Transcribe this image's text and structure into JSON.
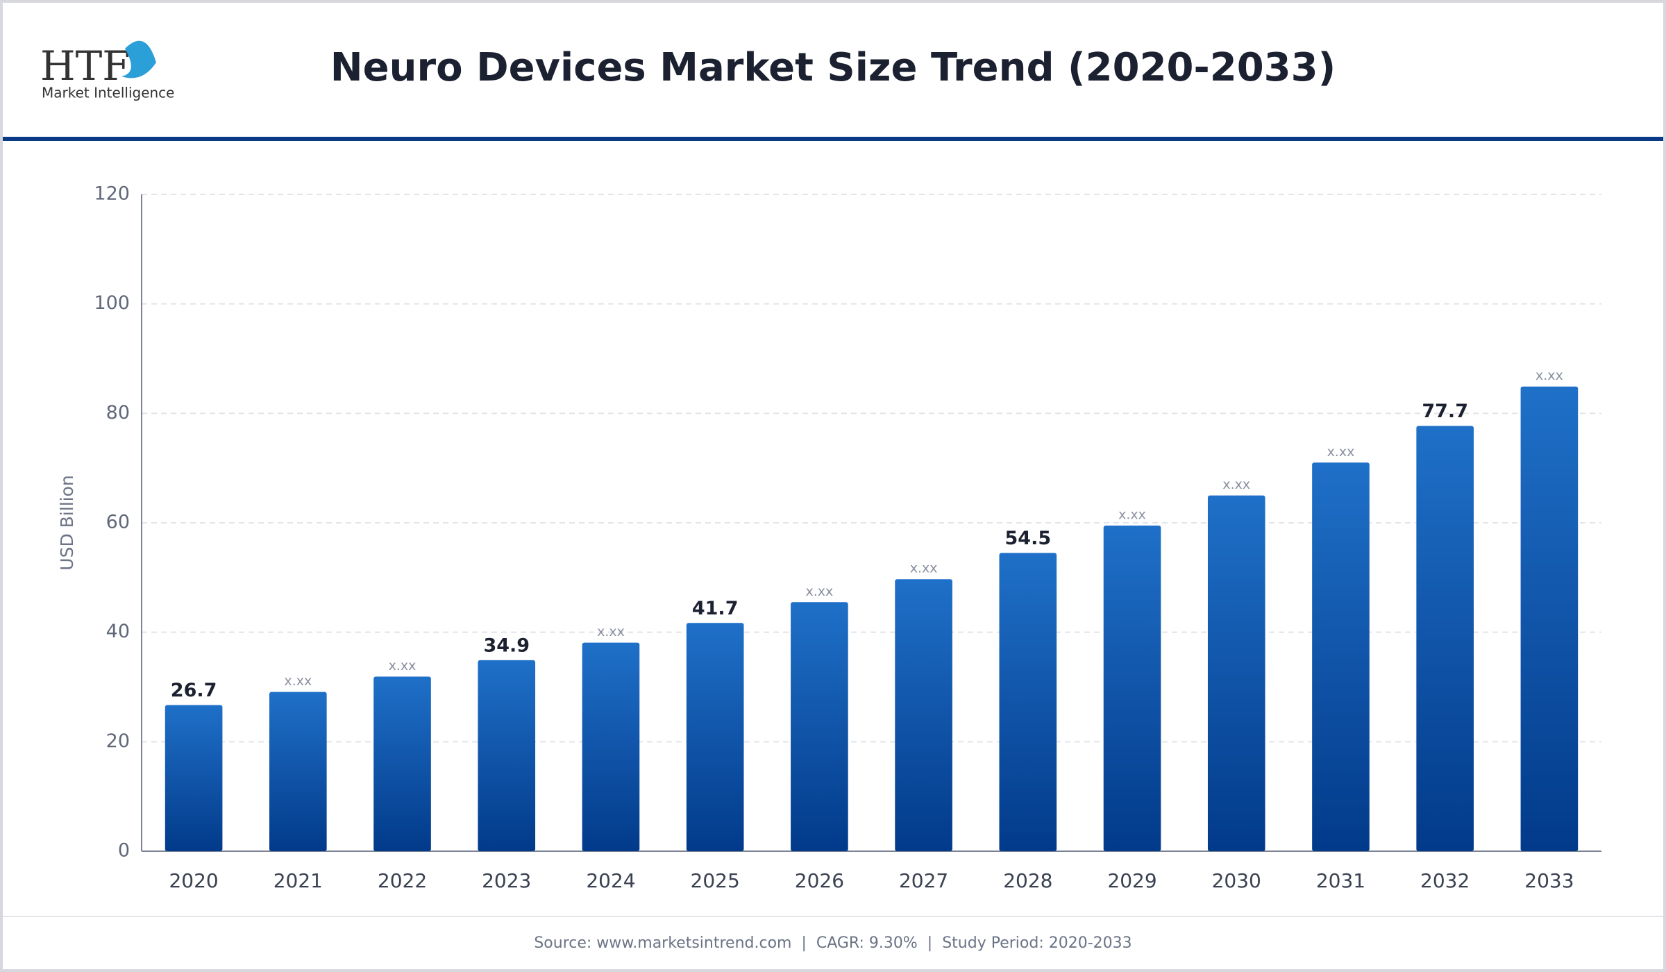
{
  "logo": {
    "mark": "HTF",
    "subtitle": "Market Intelligence"
  },
  "chart_data": {
    "type": "bar",
    "title": "Neuro Devices Market Size Trend (2020-2033)",
    "y_label": "USD Billion",
    "categories": [
      "2020",
      "2021",
      "2022",
      "2023",
      "2024",
      "2025",
      "2026",
      "2027",
      "2028",
      "2029",
      "2030",
      "2031",
      "2032",
      "2033"
    ],
    "values": [
      26.7,
      29.1,
      31.9,
      34.9,
      38.1,
      41.7,
      45.5,
      49.7,
      54.5,
      59.5,
      65.0,
      71.0,
      77.7,
      84.9
    ],
    "value_labels": [
      "26.7",
      "x.xx",
      "x.xx",
      "34.9",
      "x.xx",
      "41.7",
      "x.xx",
      "x.xx",
      "54.5",
      "x.xx",
      "x.xx",
      "x.xx",
      "77.7",
      "x.xx"
    ],
    "gradient": [
      "#1f70c8",
      "#023a8a"
    ],
    "ylim": [
      0,
      120
    ],
    "yticks": [
      0,
      20,
      40,
      60,
      80,
      100,
      120
    ],
    "grid": true,
    "source": "Source: www.marketsintrend.com  |  CAGR: 9.30%  |  Study Period: 2020-2033"
  }
}
